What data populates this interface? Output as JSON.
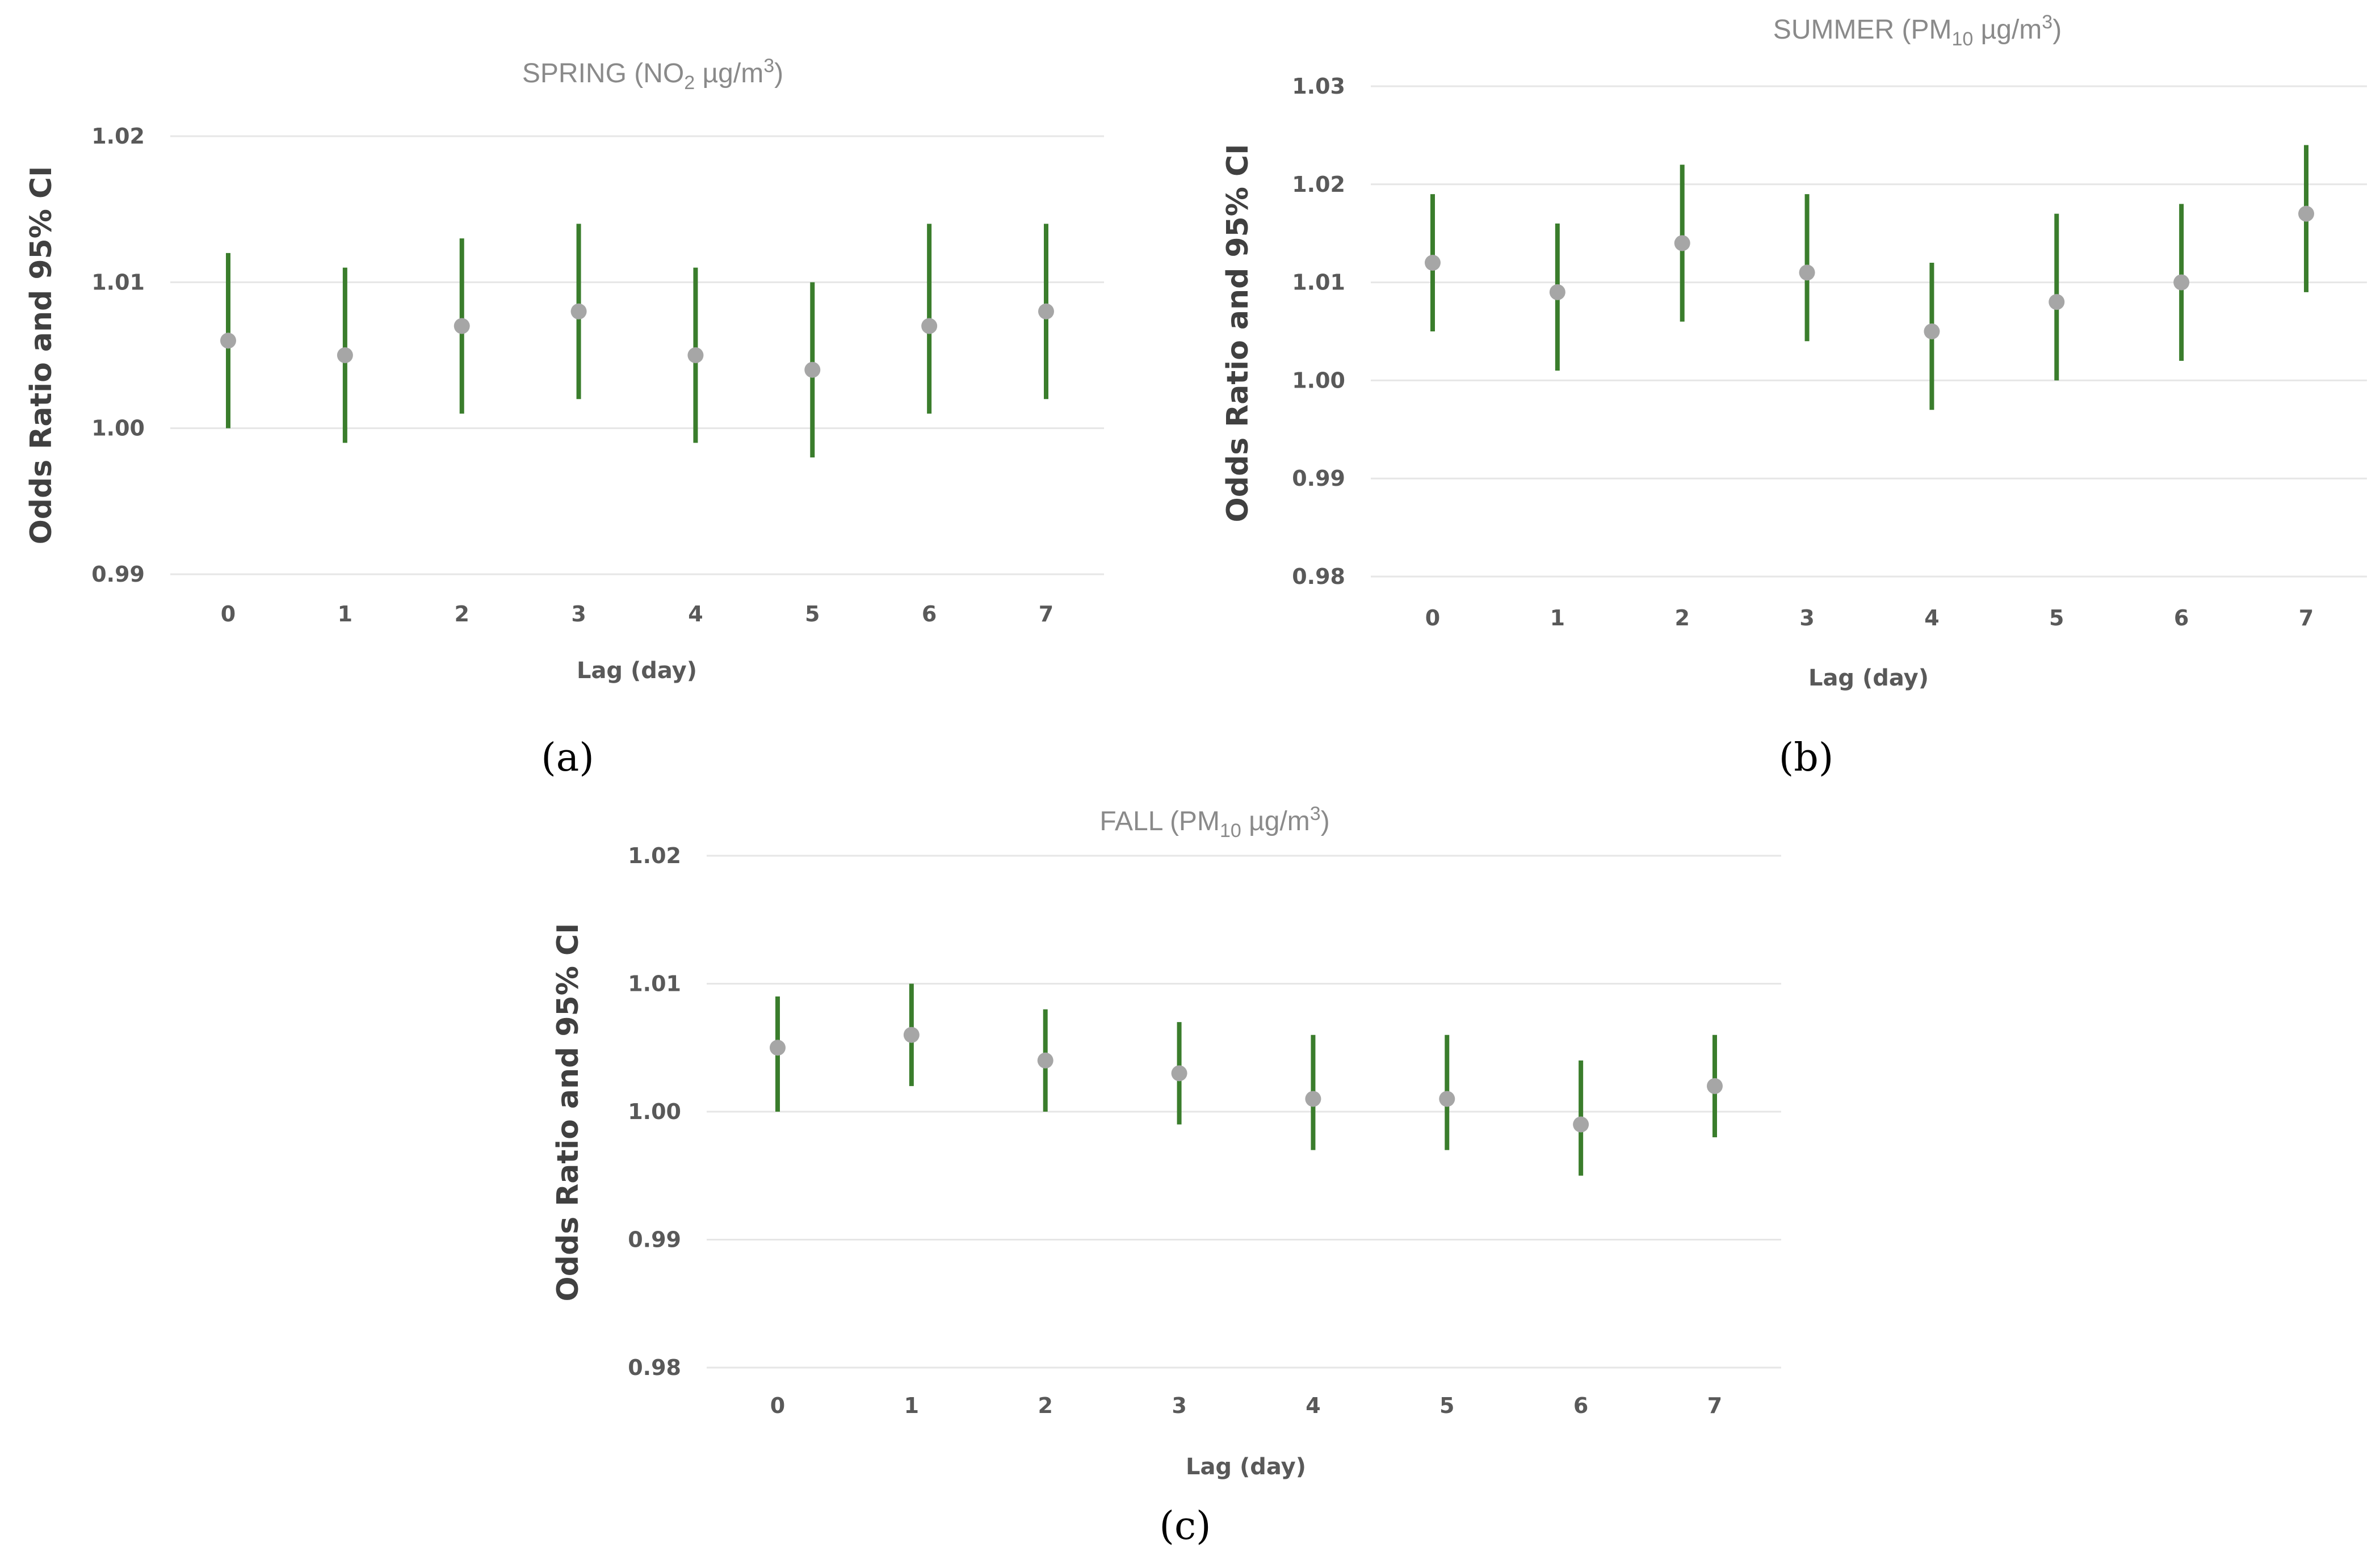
{
  "chart_data": [
    {
      "type": "errorbar",
      "panel_label": "(a)",
      "title": "SPRING (NO2 µg/m3)",
      "title_parts": {
        "prefix": "SPRING (NO",
        "sub": "2",
        "middle": " µg/m",
        "sup": "3",
        "suffix": ")"
      },
      "xlabel": "Lag (day)",
      "ylabel": "Odds Ratio and 95% CI",
      "categories": [
        "0",
        "1",
        "2",
        "3",
        "4",
        "5",
        "6",
        "7"
      ],
      "ylim": [
        0.99,
        1.02
      ],
      "yticks": [
        "0.99",
        "1.00",
        "1.01",
        "1.02"
      ],
      "values": [
        1.006,
        1.005,
        1.007,
        1.008,
        1.005,
        1.004,
        1.007,
        1.008
      ],
      "lower": [
        1.0,
        0.999,
        1.001,
        1.002,
        0.999,
        0.998,
        1.001,
        1.002
      ],
      "upper": [
        1.012,
        1.011,
        1.013,
        1.014,
        1.011,
        1.01,
        1.014,
        1.014
      ]
    },
    {
      "type": "errorbar",
      "panel_label": "(b)",
      "title": "SUMMER (PM10 µg/m3)",
      "title_parts": {
        "prefix": "SUMMER (PM",
        "sub": "10",
        "middle": " µg/m",
        "sup": "3",
        "suffix": ")"
      },
      "xlabel": "Lag (day)",
      "ylabel": "Odds Ratio and 95% CI",
      "categories": [
        "0",
        "1",
        "2",
        "3",
        "4",
        "5",
        "6",
        "7"
      ],
      "ylim": [
        0.98,
        1.03
      ],
      "yticks": [
        "0.98",
        "0.99",
        "1.00",
        "1.01",
        "1.02",
        "1.03"
      ],
      "values": [
        1.012,
        1.009,
        1.014,
        1.011,
        1.005,
        1.008,
        1.01,
        1.017
      ],
      "lower": [
        1.005,
        1.001,
        1.006,
        1.004,
        0.997,
        1.0,
        1.002,
        1.009
      ],
      "upper": [
        1.019,
        1.016,
        1.022,
        1.019,
        1.012,
        1.017,
        1.018,
        1.024
      ]
    },
    {
      "type": "errorbar",
      "panel_label": "(c)",
      "title": "FALL (PM10 µg/m3)",
      "title_parts": {
        "prefix": "FALL (PM",
        "sub": "10",
        "middle": " µg/m",
        "sup": "3",
        "suffix": ")"
      },
      "xlabel": "Lag (day)",
      "ylabel": "Odds Ratio and 95% CI",
      "categories": [
        "0",
        "1",
        "2",
        "3",
        "4",
        "5",
        "6",
        "7"
      ],
      "ylim": [
        0.98,
        1.02
      ],
      "yticks": [
        "0.98",
        "0.99",
        "1.00",
        "1.01",
        "1.02"
      ],
      "values": [
        1.005,
        1.006,
        1.004,
        1.003,
        1.001,
        1.001,
        0.999,
        1.002
      ],
      "lower": [
        1.0,
        1.002,
        1.0,
        0.999,
        0.997,
        0.997,
        0.995,
        0.998
      ],
      "upper": [
        1.009,
        1.01,
        1.008,
        1.007,
        1.006,
        1.006,
        1.004,
        1.006
      ]
    }
  ],
  "colors": {
    "ci_line": "#3a7d2c",
    "point": "#a6a6a6",
    "grid": "#e6e6e6"
  }
}
